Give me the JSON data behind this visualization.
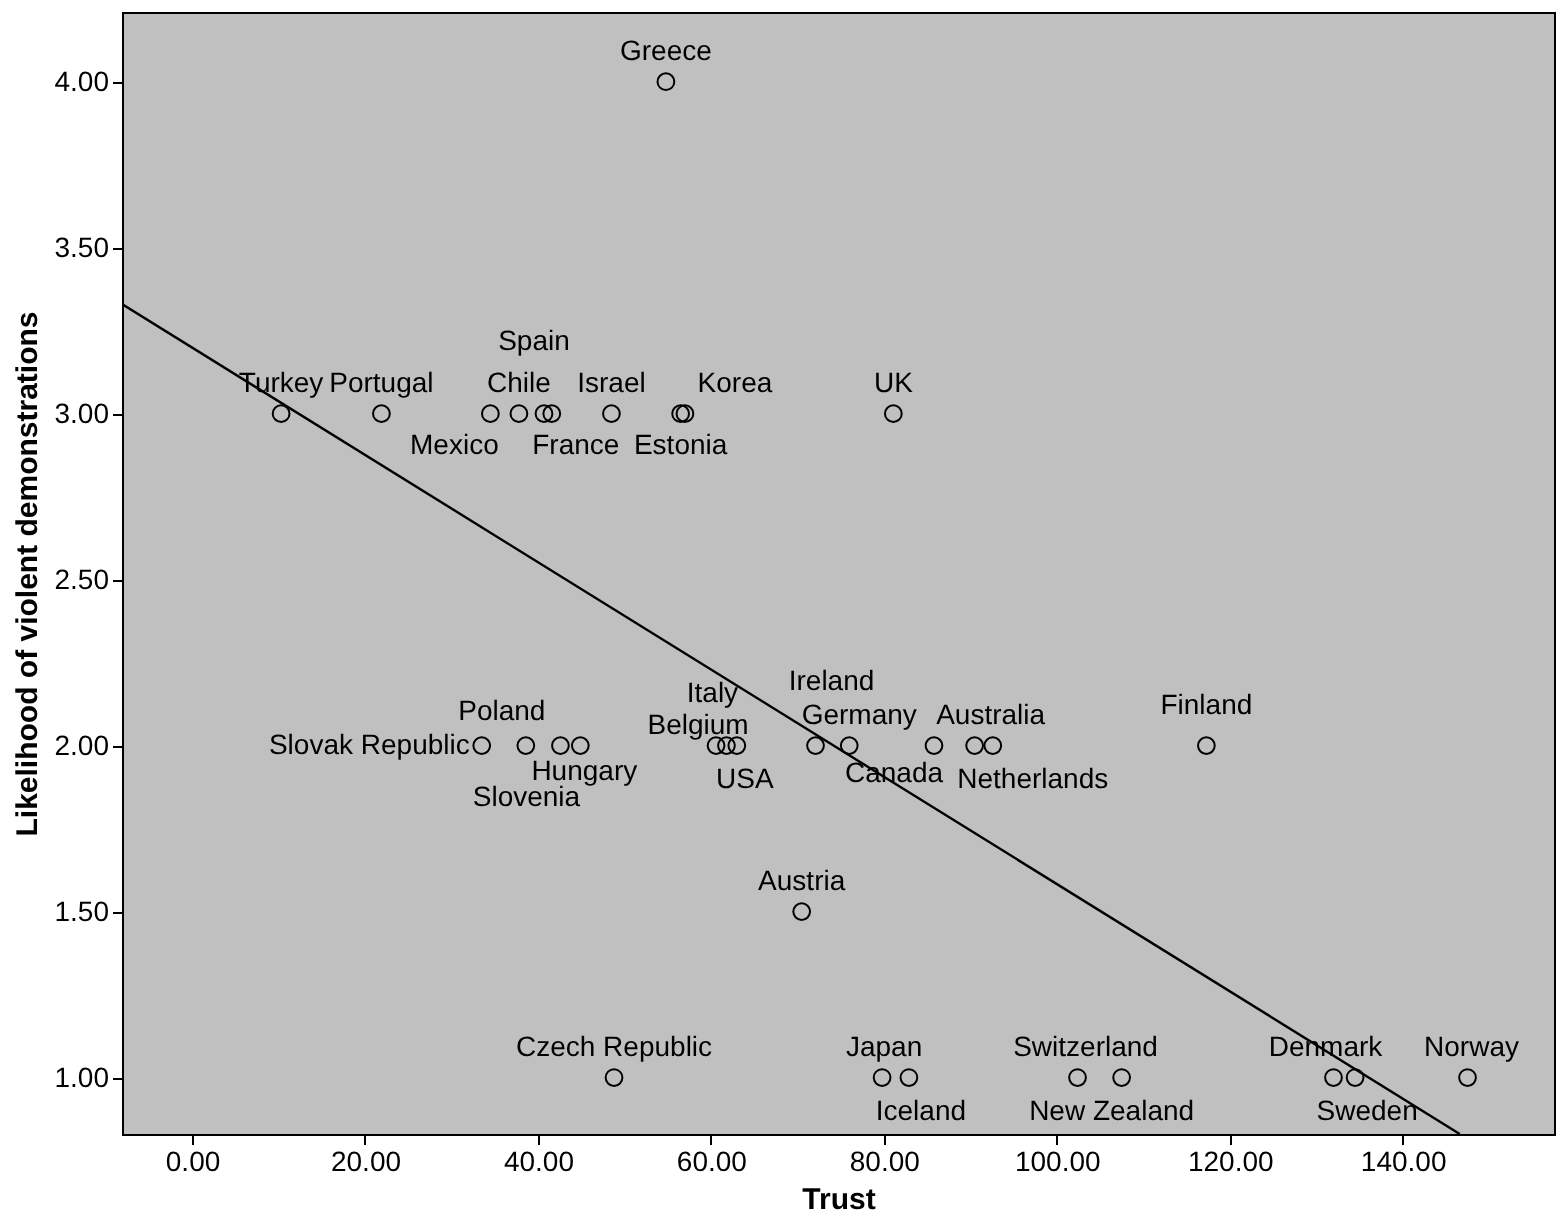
{
  "chart_data": {
    "type": "scatter",
    "xlabel": "Trust",
    "ylabel": "Likelihood of violent demonstrations",
    "xlim": [
      -8.1,
      157.5
    ],
    "ylim": [
      0.83,
      4.21
    ],
    "xticks": [
      {
        "value": 0,
        "label": "0.00"
      },
      {
        "value": 20,
        "label": "20.00"
      },
      {
        "value": 40,
        "label": "40.00"
      },
      {
        "value": 60,
        "label": "60.00"
      },
      {
        "value": 80,
        "label": "80.00"
      },
      {
        "value": 100,
        "label": "100.00"
      },
      {
        "value": 120,
        "label": "120.00"
      },
      {
        "value": 140,
        "label": "140.00"
      }
    ],
    "yticks": [
      {
        "value": 1,
        "label": "1.00"
      },
      {
        "value": 1.5,
        "label": "1.50"
      },
      {
        "value": 2,
        "label": "2.00"
      },
      {
        "value": 2.5,
        "label": "2.50"
      },
      {
        "value": 3,
        "label": "3.00"
      },
      {
        "value": 3.5,
        "label": "3.50"
      },
      {
        "value": 4,
        "label": "4.00"
      }
    ],
    "grid": false,
    "series": [
      {
        "marker": "circle",
        "color": "#000000",
        "x": [
          54.8,
          10.3,
          21.9,
          34.5,
          37.8,
          40.7,
          41.6,
          48.5,
          56.5,
          57.0,
          81.1,
          33.5,
          38.6,
          42.6,
          44.9,
          60.6,
          61.8,
          63.0,
          72.1,
          76.0,
          85.8,
          90.5,
          92.6,
          117.3,
          70.5,
          48.8,
          79.8,
          82.9,
          102.4,
          107.5,
          132.0,
          134.5,
          147.5
        ],
        "values": [
          4,
          3,
          3,
          3,
          3,
          3,
          3,
          3,
          3,
          3,
          3,
          2,
          2,
          2,
          2,
          2,
          2,
          2,
          2,
          2,
          2,
          2,
          2,
          2,
          1.5,
          1,
          1,
          1,
          1,
          1,
          1,
          1,
          1
        ]
      },
      {
        "type": "line",
        "color": "#000000",
        "x": [
          -8.1,
          146.6
        ],
        "values": [
          3.33,
          0.83
        ]
      }
    ],
    "annotations": [
      {
        "text": "Greece",
        "x": 54.8,
        "y": 4
      },
      {
        "text": "Turkey",
        "x": 10.3,
        "y": 3
      },
      {
        "text": "Portugal",
        "x": 21.9,
        "y": 3
      },
      {
        "text": "Mexico",
        "x": 34.5,
        "y": 3
      },
      {
        "text": "Chile",
        "x": 37.8,
        "y": 3
      },
      {
        "text": "Spain",
        "x": 40.7,
        "y": 3
      },
      {
        "text": "France",
        "x": 41.6,
        "y": 3
      },
      {
        "text": "Israel",
        "x": 48.5,
        "y": 3
      },
      {
        "text": "Estonia",
        "x": 56.5,
        "y": 3
      },
      {
        "text": "Korea",
        "x": 57.0,
        "y": 3
      },
      {
        "text": "UK",
        "x": 81.1,
        "y": 3
      },
      {
        "text": "Slovak Republic",
        "x": 33.5,
        "y": 2
      },
      {
        "text": "Poland",
        "x": 38.6,
        "y": 2
      },
      {
        "text": "Slovenia",
        "x": 42.6,
        "y": 2
      },
      {
        "text": "Hungary",
        "x": 44.9,
        "y": 2
      },
      {
        "text": "Belgium",
        "x": 60.6,
        "y": 2
      },
      {
        "text": "Italy",
        "x": 61.8,
        "y": 2
      },
      {
        "text": "USA",
        "x": 63.0,
        "y": 2
      },
      {
        "text": "Ireland",
        "x": 72.1,
        "y": 2
      },
      {
        "text": "Germany",
        "x": 76.0,
        "y": 2
      },
      {
        "text": "Canada",
        "x": 85.8,
        "y": 2
      },
      {
        "text": "Australia",
        "x": 90.5,
        "y": 2
      },
      {
        "text": "Netherlands",
        "x": 92.6,
        "y": 2
      },
      {
        "text": "Finland",
        "x": 117.3,
        "y": 2
      },
      {
        "text": "Austria",
        "x": 70.5,
        "y": 1.5
      },
      {
        "text": "Czech Republic",
        "x": 48.8,
        "y": 1
      },
      {
        "text": "Japan",
        "x": 79.8,
        "y": 1
      },
      {
        "text": "Iceland",
        "x": 82.9,
        "y": 1
      },
      {
        "text": "Switzerland",
        "x": 102.4,
        "y": 1
      },
      {
        "text": "New Zealand",
        "x": 107.5,
        "y": 1
      },
      {
        "text": "Denmark",
        "x": 132.0,
        "y": 1
      },
      {
        "text": "Sweden",
        "x": 134.5,
        "y": 1
      },
      {
        "text": "Norway",
        "x": 147.5,
        "y": 1
      }
    ]
  }
}
